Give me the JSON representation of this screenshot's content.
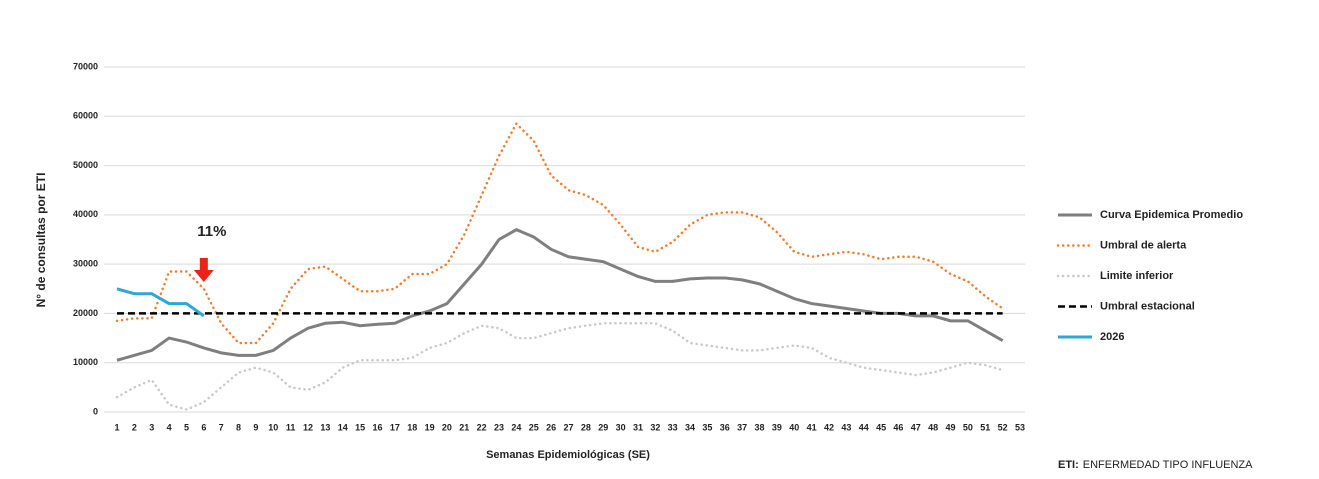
{
  "chart_data": {
    "type": "line",
    "y_label": "N° de consultas por ETI",
    "x_label": "Semanas Epidemiológicas (SE)",
    "categories": [
      1,
      2,
      3,
      4,
      5,
      6,
      7,
      8,
      9,
      10,
      11,
      12,
      13,
      14,
      15,
      16,
      17,
      18,
      19,
      20,
      21,
      22,
      23,
      24,
      25,
      26,
      27,
      28,
      29,
      30,
      31,
      32,
      33,
      34,
      35,
      36,
      37,
      38,
      39,
      40,
      41,
      42,
      43,
      44,
      45,
      46,
      47,
      48,
      49,
      50,
      51,
      52,
      53
    ],
    "ylim": [
      0,
      70000
    ],
    "yticks": [
      0,
      10000,
      20000,
      30000,
      40000,
      50000,
      60000,
      70000
    ],
    "grid": true,
    "legend": "right",
    "series": [
      {
        "name": "Curva Epidemica Promedio",
        "color": "#7f7f7f",
        "style": "solid",
        "values": [
          10500,
          11500,
          12500,
          15000,
          14200,
          13000,
          12000,
          11500,
          11500,
          12500,
          15000,
          17000,
          18000,
          18200,
          17500,
          17800,
          18000,
          19500,
          20500,
          22000,
          26000,
          30000,
          35000,
          37000,
          35500,
          33000,
          31500,
          31000,
          30500,
          29000,
          27500,
          26500,
          26500,
          27000,
          27200,
          27200,
          26800,
          26000,
          24500,
          23000,
          22000,
          21500,
          21000,
          20500,
          20000,
          20000,
          19500,
          19500,
          18500,
          18500,
          16500,
          14500,
          null
        ]
      },
      {
        "name": "Umbral de alerta",
        "color": "#ed7d31",
        "style": "dotted",
        "values": [
          18500,
          19000,
          19000,
          28500,
          28500,
          25000,
          18000,
          14000,
          14000,
          18000,
          25000,
          29000,
          29500,
          27000,
          24500,
          24500,
          25000,
          28000,
          28000,
          30000,
          36000,
          44000,
          52000,
          58500,
          55000,
          48000,
          45000,
          44000,
          42000,
          38000,
          33500,
          32500,
          34500,
          38000,
          40000,
          40500,
          40500,
          39500,
          36500,
          32500,
          31500,
          32000,
          32500,
          32000,
          31000,
          31500,
          31500,
          30500,
          28000,
          26500,
          23500,
          21000,
          null
        ]
      },
      {
        "name": "Limite inferior",
        "color": "#c8c8c8",
        "style": "dotted",
        "values": [
          3000,
          5000,
          6500,
          1500,
          500,
          2000,
          5000,
          8000,
          9000,
          8000,
          5000,
          4500,
          6000,
          9000,
          10500,
          10500,
          10500,
          11000,
          13000,
          14000,
          16000,
          17500,
          17000,
          15000,
          15000,
          16000,
          17000,
          17500,
          18000,
          18000,
          18000,
          18000,
          16500,
          14000,
          13500,
          13000,
          12500,
          12500,
          13000,
          13500,
          13000,
          11000,
          10000,
          9000,
          8500,
          8000,
          7500,
          8000,
          9000,
          10000,
          9500,
          8500,
          null
        ]
      },
      {
        "name": "Umbral estacional",
        "color": "#000000",
        "style": "dashed",
        "values": [
          20000,
          20000,
          20000,
          20000,
          20000,
          20000,
          20000,
          20000,
          20000,
          20000,
          20000,
          20000,
          20000,
          20000,
          20000,
          20000,
          20000,
          20000,
          20000,
          20000,
          20000,
          20000,
          20000,
          20000,
          20000,
          20000,
          20000,
          20000,
          20000,
          20000,
          20000,
          20000,
          20000,
          20000,
          20000,
          20000,
          20000,
          20000,
          20000,
          20000,
          20000,
          20000,
          20000,
          20000,
          20000,
          20000,
          20000,
          20000,
          20000,
          20000,
          20000,
          20000,
          null
        ]
      },
      {
        "name": "2026",
        "color": "#2ea6d6",
        "style": "solid",
        "values": [
          25000,
          24000,
          24000,
          22000,
          22000,
          19500,
          null,
          null,
          null,
          null,
          null,
          null,
          null,
          null,
          null,
          null,
          null,
          null,
          null,
          null,
          null,
          null,
          null,
          null,
          null,
          null,
          null,
          null,
          null,
          null,
          null,
          null,
          null,
          null,
          null,
          null,
          null,
          null,
          null,
          null,
          null,
          null,
          null,
          null,
          null,
          null,
          null,
          null,
          null,
          null,
          null,
          null,
          null
        ]
      }
    ],
    "annotation": {
      "text": "11%",
      "x": 6,
      "color": "#e8231a"
    },
    "note": {
      "term": "ETI:",
      "text": "ENFERMEDAD TIPO INFLUENZA"
    }
  }
}
